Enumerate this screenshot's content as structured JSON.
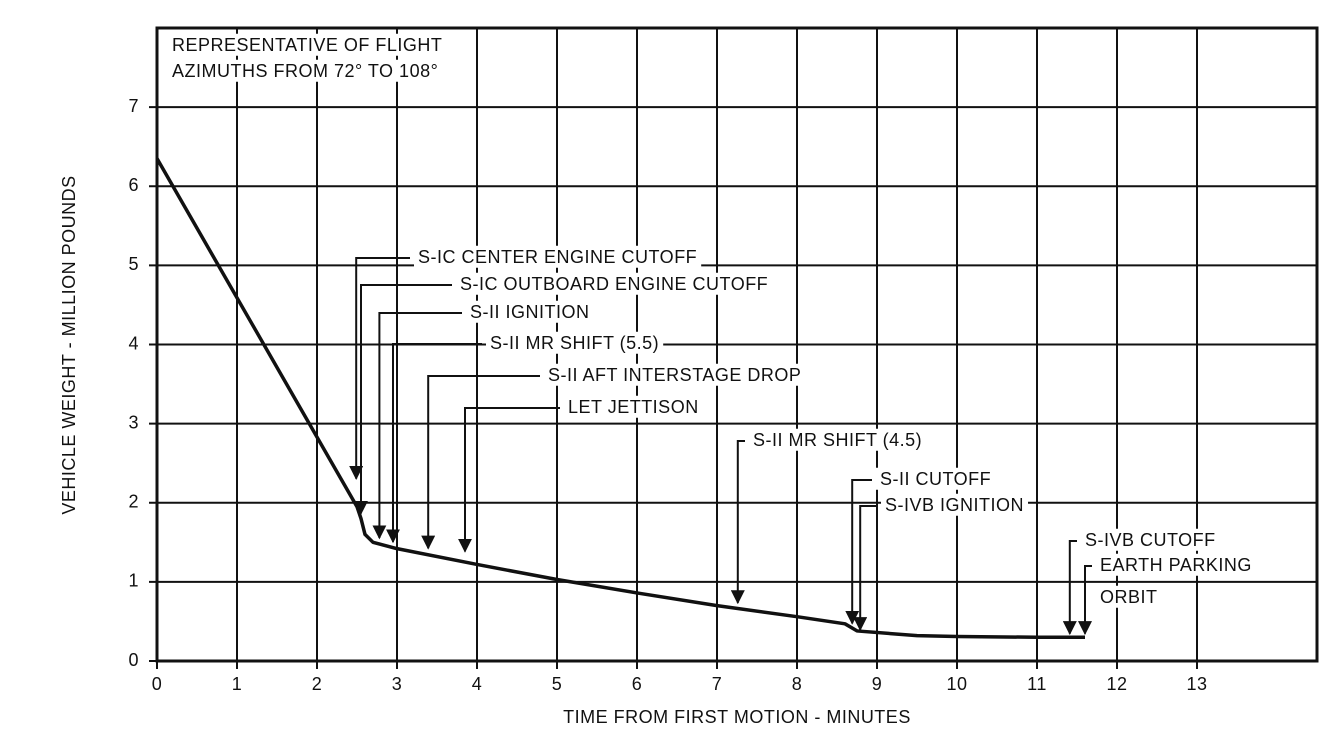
{
  "chart_data": {
    "type": "line",
    "xlabel": "TIME FROM FIRST MOTION - MINUTES",
    "ylabel": "VEHICLE WEIGHT - MILLION POUNDS",
    "note": [
      "REPRESENTATIVE OF FLIGHT",
      "AZIMUTHS FROM 72° TO 108°"
    ],
    "xlim": [
      0,
      14.5
    ],
    "ylim": [
      0,
      8
    ],
    "xticks": [
      0,
      1,
      2,
      3,
      4,
      5,
      6,
      7,
      8,
      9,
      10,
      11,
      12,
      13
    ],
    "yticks": [
      0,
      1,
      2,
      3,
      4,
      5,
      6,
      7
    ],
    "grid": true,
    "series": [
      {
        "color": "#111111",
        "x": [
          0,
          2.5,
          2.55,
          2.6,
          2.7,
          3.0,
          4,
          5,
          6,
          7,
          8,
          8.6,
          8.75,
          9.5,
          10,
          11,
          11.6
        ],
        "values": [
          6.35,
          1.95,
          1.8,
          1.6,
          1.5,
          1.42,
          1.22,
          1.03,
          0.86,
          0.7,
          0.56,
          0.47,
          0.38,
          0.32,
          0.31,
          0.3,
          0.3
        ]
      }
    ],
    "annotations": [
      {
        "lines": [
          "S-IC CENTER ENGINE CUTOFF"
        ],
        "x": 2.49,
        "y": 2.28
      },
      {
        "lines": [
          "S-IC OUTBOARD ENGINE CUTOFF"
        ],
        "x": 2.55,
        "y": 1.84
      },
      {
        "lines": [
          "S-II IGNITION"
        ],
        "x": 2.78,
        "y": 1.53
      },
      {
        "lines": [
          "S-II MR SHIFT (5.5)"
        ],
        "x": 2.95,
        "y": 1.48
      },
      {
        "lines": [
          "S-II AFT INTERSTAGE DROP"
        ],
        "x": 3.39,
        "y": 1.4
      },
      {
        "lines": [
          "LET JETTISON"
        ],
        "x": 3.85,
        "y": 1.36
      },
      {
        "lines": [
          "S-II MR SHIFT (4.5)"
        ],
        "x": 7.26,
        "y": 0.71
      },
      {
        "lines": [
          "S-II CUTOFF"
        ],
        "x": 8.69,
        "y": 0.45
      },
      {
        "lines": [
          "S-IVB IGNITION"
        ],
        "x": 8.79,
        "y": 0.37
      },
      {
        "lines": [
          "S-IVB CUTOFF"
        ],
        "x": 11.41,
        "y": 0.32
      },
      {
        "lines": [
          "EARTH PARKING",
          "ORBIT"
        ],
        "x": 11.6,
        "y": 0.32
      }
    ]
  }
}
